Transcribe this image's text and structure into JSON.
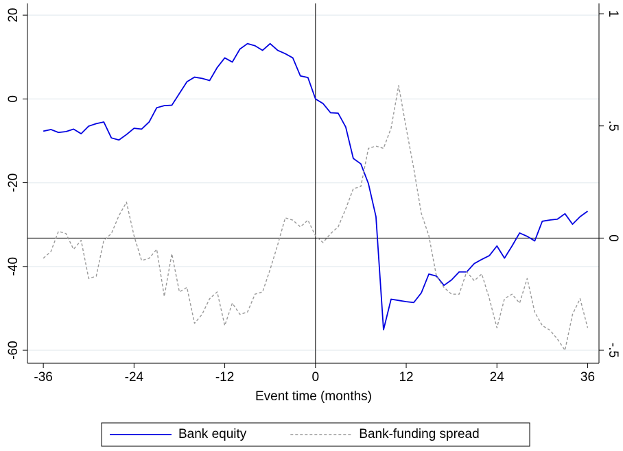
{
  "chart_data": {
    "type": "line",
    "x_label": "Event time (months)",
    "x": [
      -36,
      -35,
      -34,
      -33,
      -32,
      -31,
      -30,
      -29,
      -28,
      -27,
      -26,
      -25,
      -24,
      -23,
      -22,
      -21,
      -20,
      -19,
      -18,
      -17,
      -16,
      -15,
      -14,
      -13,
      -12,
      -11,
      -10,
      -9,
      -8,
      -7,
      -6,
      -5,
      -4,
      -3,
      -2,
      -1,
      0,
      1,
      2,
      3,
      4,
      5,
      6,
      7,
      8,
      9,
      10,
      11,
      12,
      13,
      14,
      15,
      16,
      17,
      18,
      19,
      20,
      21,
      22,
      23,
      24,
      25,
      26,
      27,
      28,
      29,
      30,
      31,
      32,
      33,
      34,
      35,
      36
    ],
    "series": [
      {
        "name": "Bank equity",
        "color": "#0000e0",
        "dash": "solid",
        "axis": "y",
        "values": [
          -7.7,
          -7.3,
          -8,
          -7.8,
          -7.2,
          -8.3,
          -6.5,
          -5.9,
          -5.5,
          -9.3,
          -9.8,
          -8.5,
          -7,
          -7.2,
          -5.5,
          -2.1,
          -1.6,
          -1.5,
          1.3,
          4.1,
          5.2,
          4.9,
          4.4,
          7.5,
          9.8,
          8.8,
          11.9,
          13.2,
          12.7,
          11.6,
          13.2,
          11.6,
          10.8,
          9.8,
          5.5,
          5.1,
          0,
          -1.1,
          -3.3,
          -3.4,
          -6.7,
          -14.2,
          -15.5,
          -20.2,
          -28.1,
          -55.1,
          -47.8,
          -48.1,
          -48.4,
          -48.6,
          -46.3,
          -41.8,
          -42.3,
          -44.5,
          -43.2,
          -41.3,
          -41.3,
          -39.3,
          -38.3,
          -37.4,
          -35.1,
          -38,
          -35.1,
          -32,
          -32.8,
          -33.9,
          -29.2,
          -28.9,
          -28.7,
          -27.4,
          -29.9,
          -28.1,
          -26.8
        ]
      },
      {
        "name": "Bank-funding spread",
        "color": "#999999",
        "dash": "dashed",
        "axis": "y2",
        "values": [
          -0.09,
          -0.06,
          0.03,
          0.02,
          -0.05,
          -0.01,
          -0.18,
          -0.17,
          -0.01,
          0.02,
          0.1,
          0.16,
          0.01,
          -0.1,
          -0.09,
          -0.05,
          -0.26,
          -0.07,
          -0.24,
          -0.22,
          -0.38,
          -0.34,
          -0.27,
          -0.24,
          -0.39,
          -0.29,
          -0.34,
          -0.33,
          -0.25,
          -0.24,
          -0.14,
          -0.03,
          0.09,
          0.08,
          0.05,
          0.08,
          0.01,
          -0.02,
          0.02,
          0.05,
          0.13,
          0.22,
          0.23,
          0.4,
          0.41,
          0.4,
          0.49,
          0.68,
          0.49,
          0.31,
          0.11,
          0.01,
          -0.17,
          -0.22,
          -0.25,
          -0.25,
          -0.15,
          -0.19,
          -0.16,
          -0.27,
          -0.4,
          -0.27,
          -0.25,
          -0.29,
          -0.18,
          -0.33,
          -0.39,
          -0.41,
          -0.45,
          -0.5,
          -0.34,
          -0.27,
          -0.4
        ]
      }
    ],
    "xlim": [
      -38.1,
      37.5
    ],
    "xticks": [
      -36,
      -24,
      -12,
      0,
      12,
      24,
      36
    ],
    "ylim": [
      -63.1,
      22.8
    ],
    "yticks": [
      -60,
      -40,
      -20,
      0,
      20
    ],
    "y2lim": [
      -0.558,
      1.046
    ],
    "y2ticks": [
      {
        "value": -0.5,
        "label": "-.5"
      },
      0,
      {
        "value": 0.5,
        "label": ".5"
      },
      1
    ],
    "grid": true,
    "xline": 0,
    "y2line": 0,
    "legend": "bottom"
  }
}
